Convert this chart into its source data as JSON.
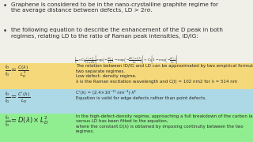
{
  "bg_color": "#f0f0e8",
  "bullet1": "Graphene is considered to be in the nano-crystalline graphite regime for\nthe average distance between defects, LD > 2rσ.",
  "bullet2": "the following equation to describe the enhancement of the D peak in both\nregimes, relating LD to the ratio of Raman peak intensities, iD/IG:",
  "equation_full": "$\\frac{I_S}{I_G} = C_A \\frac{r_A^2 - r_S^2}{r_S^2 - 2r_S^2}\\left[\\exp\\!\\left(-\\frac{\\pi r_S^2}{L_D^2}\\right) - \\exp\\!\\left(-\\frac{\\pi (r_A^2 - r_S^2)}{L_D^2}\\right)\\right] + C_S\\!\\left[1 - \\exp\\!\\left(-\\frac{\\pi r_A^2}{L_D^2}\\right)\\right]$",
  "eq1_lhs": "$\\frac{I_D}{I_G} = \\frac{C(\\lambda)}{L_D^2}$",
  "eq1_note_line1": "The relation between ID/IG and LD can be approximated by two empirical formulas for the",
  "eq1_note_line2": "two separate regimes.",
  "eq1_note_line3": "Low defect- density regime.",
  "eq1_note_line4": "λ is the Raman excitation wavelength and C(l) = 102 nm2 for λ = 514 nm",
  "eq1_bg": "#f5d87a",
  "eq2_lhs": "$\\frac{I_D}{I_G} = \\frac{C'(\\lambda)}{L_D}$",
  "eq2_note_line1": "C'(λ) = (2.4×10⁻¹¹ nm⁻³)·λ⁴",
  "eq2_note_line2": "Equation is valid for edge defects rather than point defects.",
  "eq2_bg": "#add8e6",
  "eq3_lhs": "$\\frac{I_D}{I_G} = D(\\lambda)\\times L_D^2$",
  "eq3_note_line1": "In the high-defect-density regime, approaching a full breakdown of the carbon lattice, ID/IG",
  "eq3_note_line2": "versus LD has been fitted to the equation,",
  "eq3_note_line3": "where the constant D(λ) is obtained by imposing continuity between the two",
  "eq3_note_line4": "regimes.",
  "eq3_bg": "#90ee90",
  "text_color": "#2a2a2a",
  "font_size_bullet": 5.2,
  "font_size_eq": 6.0,
  "font_size_note": 4.0,
  "font_size_formula": 3.2
}
